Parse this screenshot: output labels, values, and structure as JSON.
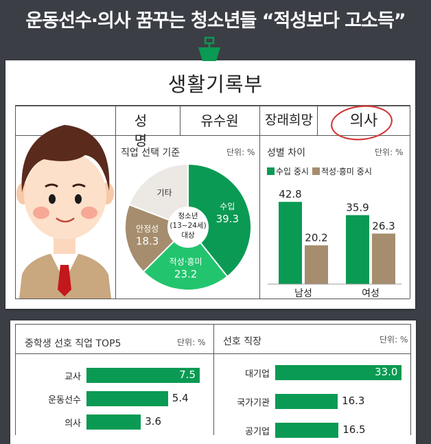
{
  "headline": "운동선수·의사 꿈꾸는 청소년들 “적성보다 고소득”",
  "record": {
    "title": "생활기록부",
    "name_label": "성 명",
    "name_value": "유수원",
    "hope_label": "장래희망",
    "hope_value": "의사"
  },
  "colors": {
    "green": "#0a9a53",
    "light_green": "#23c46e",
    "tan": "#a58d6e",
    "light_gray": "#ece9e4"
  },
  "chart_data": [
    {
      "type": "pie",
      "title": "직업 선택 기준",
      "unit": "단위: %",
      "center_label": [
        "청소년",
        "(13~24세)",
        "대상"
      ],
      "slices": [
        {
          "label": "수입",
          "value": 39.3,
          "color": "#0a9a53"
        },
        {
          "label": "적성·흥미",
          "value": 23.2,
          "color": "#23c46e"
        },
        {
          "label": "안정성",
          "value": 18.3,
          "color": "#a58d6e"
        },
        {
          "label": "기타",
          "value": null,
          "color": "#ece9e4"
        }
      ]
    },
    {
      "type": "bar",
      "title": "성별 차이",
      "unit": "단위: %",
      "categories": [
        "남성",
        "여성"
      ],
      "series": [
        {
          "name": "수입 중시",
          "values": [
            42.8,
            35.9
          ],
          "color": "#0a9a53"
        },
        {
          "name": "적성·흥미 중시",
          "values": [
            20.2,
            26.3
          ],
          "color": "#a58d6e"
        }
      ]
    },
    {
      "type": "bar",
      "orientation": "horizontal",
      "title": "중학생 선호 직업 TOP5",
      "unit": "단위: %",
      "categories": [
        "교사",
        "운동선수",
        "의사"
      ],
      "values": [
        7.5,
        5.4,
        3.6
      ],
      "xlim": [
        0,
        8
      ]
    },
    {
      "type": "bar",
      "orientation": "horizontal",
      "title": "선호 직장",
      "unit": "단위: %",
      "categories": [
        "대기업",
        "국가기관",
        "공기업"
      ],
      "values": [
        33.0,
        16.3,
        16.5
      ],
      "value_labels": [
        "33.0",
        "16.3",
        "16.5"
      ],
      "xlim": [
        0,
        34
      ]
    }
  ]
}
